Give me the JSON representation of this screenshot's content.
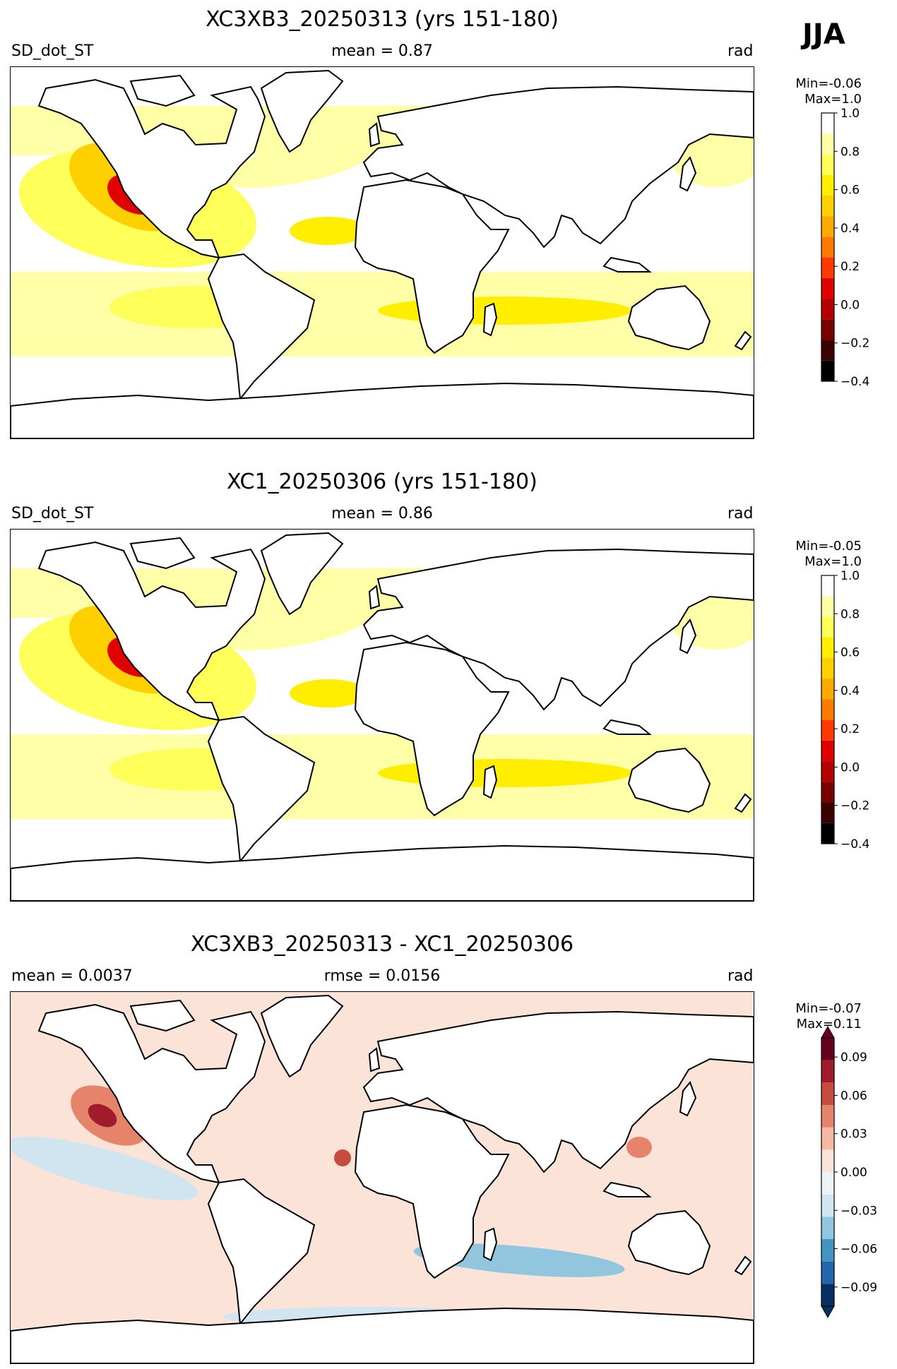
{
  "season": "JJA",
  "panels": [
    {
      "title": "XC3XB3_20250313 (yrs 151-180)",
      "left_label": "SD_dot_ST",
      "center_label": "mean = 0.87",
      "right_label": "rad",
      "min_label": "Min=-0.06",
      "max_label": "Max=1.0",
      "colorbar": {
        "ticks": [
          "1.0",
          "0.8",
          "0.6",
          "0.4",
          "0.2",
          "0.0",
          "−0.2",
          "−0.4"
        ]
      }
    },
    {
      "title": "XC1_20250306 (yrs 151-180)",
      "left_label": "SD_dot_ST",
      "center_label": "mean = 0.86",
      "right_label": "rad",
      "min_label": "Min=-0.05",
      "max_label": "Max=1.0",
      "colorbar": {
        "ticks": [
          "1.0",
          "0.8",
          "0.6",
          "0.4",
          "0.2",
          "0.0",
          "−0.2",
          "−0.4"
        ]
      }
    },
    {
      "title": "XC3XB3_20250313 - XC1_20250306",
      "left_label": "mean = 0.0037",
      "center_label": "rmse = 0.0156",
      "right_label": "rad",
      "min_label": "Min=-0.07",
      "max_label": "Max=0.11",
      "colorbar": {
        "ticks": [
          "0.09",
          "0.06",
          "0.03",
          "0.00",
          "−0.03",
          "−0.06",
          "−0.09"
        ]
      }
    }
  ],
  "colors": {
    "seq_scale": [
      "#000000",
      "#3c0000",
      "#780000",
      "#b40000",
      "#e00000",
      "#ff3a00",
      "#ff7a00",
      "#ffaa00",
      "#ffd000",
      "#ffee00",
      "#ffff5a",
      "#ffffa8",
      "#ffffff"
    ],
    "div_scale": [
      "#053061",
      "#2166ac",
      "#4393c3",
      "#92c5de",
      "#d1e5f0",
      "#eef3f6",
      "#fbe3d8",
      "#f4b9a0",
      "#e5846a",
      "#c84b3f",
      "#a01c2c",
      "#67001f"
    ]
  }
}
